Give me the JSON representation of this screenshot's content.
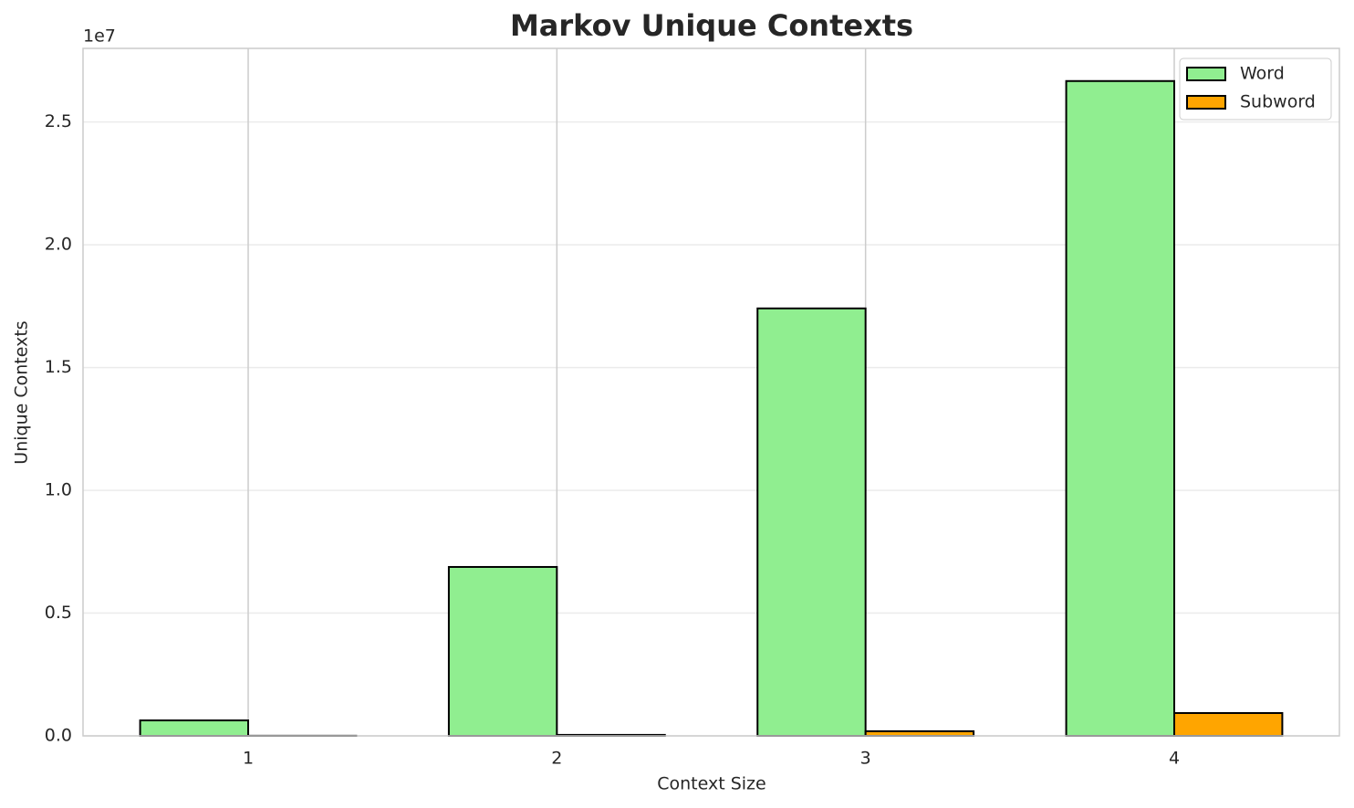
{
  "chart_data": {
    "type": "bar",
    "title": "Markov Unique Contexts",
    "x_label": "Context Size",
    "y_label": "Unique Contexts",
    "y_offset_label": "1e7",
    "x": [
      1,
      2,
      3,
      4
    ],
    "xticks": [
      1,
      2,
      3,
      4
    ],
    "xlim": [
      0.465,
      4.535
    ],
    "series": [
      {
        "name": "Word",
        "color": "#90ee90",
        "values": [
          630000,
          6880000,
          17410000,
          26670000
        ]
      },
      {
        "name": "Subword",
        "color": "#ffa500",
        "values": [
          5000,
          40000,
          190000,
          930000
        ]
      }
    ],
    "ylim": [
      0,
      28000000
    ],
    "yticks": [
      {
        "value": 0,
        "label": "0.0"
      },
      {
        "value": 5000000,
        "label": "0.5"
      },
      {
        "value": 10000000,
        "label": "1.0"
      },
      {
        "value": 15000000,
        "label": "1.5"
      },
      {
        "value": 20000000,
        "label": "2.0"
      },
      {
        "value": 25000000,
        "label": "2.5"
      }
    ],
    "grid": true,
    "legend": "upper right"
  }
}
